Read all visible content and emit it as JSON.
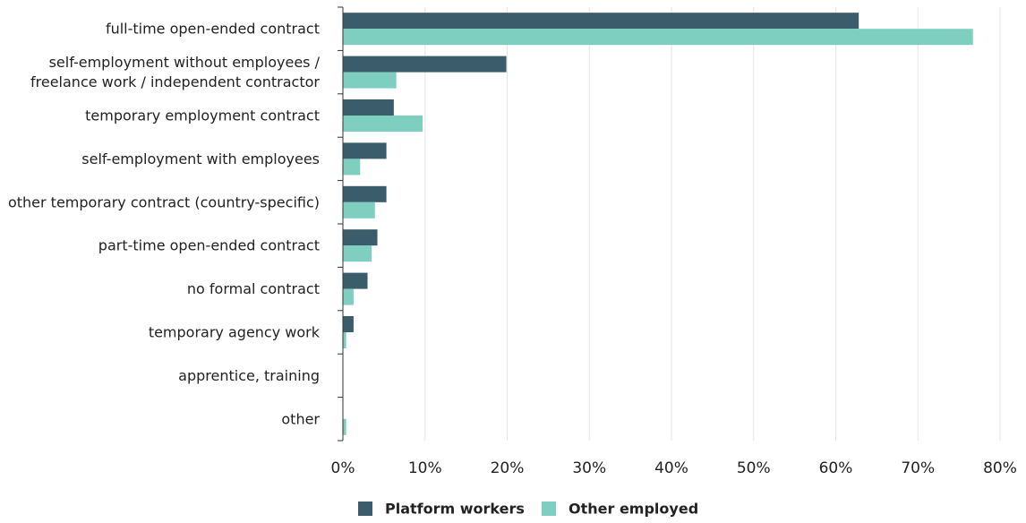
{
  "chart_data": {
    "type": "bar",
    "orientation": "horizontal",
    "categories": [
      [
        "full-time open-ended contract"
      ],
      [
        "self-employment without employees /",
        "freelance work / independent contractor"
      ],
      [
        "temporary employment contract"
      ],
      [
        "self-employment with employees"
      ],
      [
        "other temporary contract (country-specific)"
      ],
      [
        "part-time open-ended contract"
      ],
      [
        "no formal contract"
      ],
      [
        "temporary agency work"
      ],
      [
        "apprentice, training"
      ],
      [
        "other"
      ]
    ],
    "series": [
      {
        "name": "Platform workers",
        "color": "#3b5d6b",
        "values": [
          62.8,
          19.9,
          6.2,
          5.3,
          5.3,
          4.2,
          3.0,
          1.3,
          0.0,
          0.0
        ]
      },
      {
        "name": "Other employed",
        "color": "#7fcfc0",
        "values": [
          76.7,
          6.5,
          9.7,
          2.1,
          3.9,
          3.5,
          1.3,
          0.4,
          0.0,
          0.4
        ]
      }
    ],
    "xlim": [
      0,
      80
    ],
    "xticks": [
      "0%",
      "10%",
      "20%",
      "30%",
      "40%",
      "50%",
      "60%",
      "70%",
      "80%"
    ],
    "tick_values": [
      0,
      10,
      20,
      30,
      40,
      50,
      60,
      70,
      80
    ],
    "grid": true,
    "legend_position": "bottom-center"
  }
}
